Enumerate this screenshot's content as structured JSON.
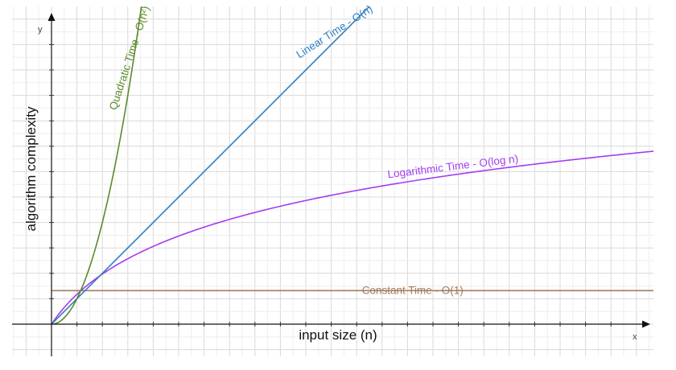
{
  "chart_data": {
    "type": "line",
    "xlabel": "input size (n)",
    "ylabel": "algorithm complexity",
    "x_axis_letter": "x",
    "y_axis_letter": "y",
    "grid": true,
    "xlim": [
      0,
      24
    ],
    "ylim": [
      -1,
      13
    ],
    "series": [
      {
        "name": "Constant Time - O(1)",
        "formula": "1.32",
        "color": "#a47c5f",
        "label_rotate": 0
      },
      {
        "name": "Logarithmic Time - O(log n)",
        "formula": "2.5*ln(1+0.6n)",
        "color": "#a33df0",
        "label_rotate": -7
      },
      {
        "name": "Linear Time - O(n)",
        "formula": "n",
        "color": "#2f7fbf",
        "label_rotate": -33
      },
      {
        "name": "Quadratic Time - O(n²)",
        "formula": "n^2",
        "color": "#5a8a2c",
        "label_rotate": -72
      }
    ]
  }
}
